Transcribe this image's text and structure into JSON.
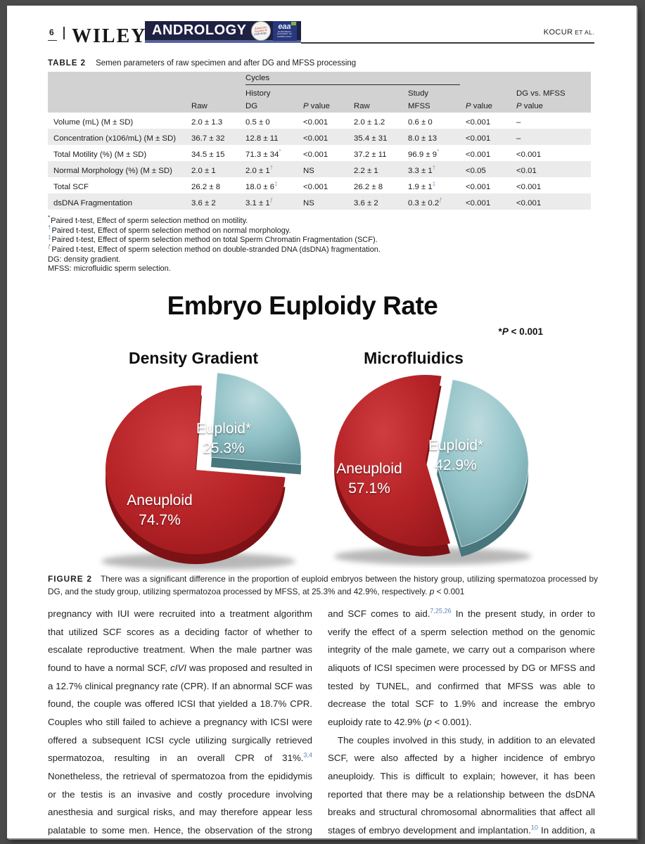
{
  "header": {
    "page_number": "6",
    "publisher": "WILEY",
    "journal": "ANDROLOGY",
    "asa_logo": [
      "American",
      "Society of",
      "Andrology"
    ],
    "eaa_logo": "eaa",
    "eaa_logo_sub": "EUROPEAN ACADEMY OF ANDROLOGY",
    "running_head": "KOCUR",
    "running_head_suffix": " ET AL."
  },
  "table": {
    "label": "TABLE 2",
    "caption": "Semen parameters of raw specimen and after DG and MFSS processing",
    "group_header": "Cycles",
    "history_header": "History",
    "study_header": "Study",
    "comparison_header": "DG vs. MFSS",
    "columns": [
      [
        {
          "text": "Raw"
        }
      ],
      [
        {
          "text": "DG"
        }
      ],
      [
        {
          "text": "P",
          "italic": true
        },
        {
          "text": " value"
        }
      ],
      [
        {
          "text": "Raw"
        }
      ],
      [
        {
          "text": "MFSS"
        }
      ],
      [
        {
          "text": "P",
          "italic": true
        },
        {
          "text": " value"
        }
      ],
      [
        {
          "text": "P",
          "italic": true
        },
        {
          "text": " value"
        }
      ]
    ],
    "rows": [
      {
        "label": "Volume (mL) (M ± SD)",
        "cells": [
          {
            "v": "2.0 ± 1.3"
          },
          {
            "v": "0.5 ± 0"
          },
          {
            "v": "<0.001"
          },
          {
            "v": "2.0 ± 1.2"
          },
          {
            "v": "0.6 ± 0"
          },
          {
            "v": "<0.001"
          },
          {
            "v": "–"
          }
        ]
      },
      {
        "label": "Concentration (x106/mL) (M ± SD)",
        "cells": [
          {
            "v": "36.7 ± 32"
          },
          {
            "v": "12.8 ± 11"
          },
          {
            "v": "<0.001"
          },
          {
            "v": "35.4 ± 31"
          },
          {
            "v": "8.0 ± 13"
          },
          {
            "v": "<0.001"
          },
          {
            "v": "–"
          }
        ]
      },
      {
        "label": "Total Motility (%) (M ± SD)",
        "cells": [
          {
            "v": "34.5 ± 15"
          },
          {
            "v": "71.3 ± 34",
            "sup": "*"
          },
          {
            "v": "<0.001"
          },
          {
            "v": "37.2 ± 11"
          },
          {
            "v": "96.9 ± 9",
            "sup": "*"
          },
          {
            "v": "<0.001"
          },
          {
            "v": "<0.001"
          }
        ]
      },
      {
        "label": "Normal Morphology (%) (M ± SD)",
        "cells": [
          {
            "v": "2.0 ± 1"
          },
          {
            "v": "2.0 ± 1",
            "sup": "†"
          },
          {
            "v": "NS"
          },
          {
            "v": "2.2 ± 1"
          },
          {
            "v": "3.3 ± 1",
            "sup": "†"
          },
          {
            "v": "<0.05"
          },
          {
            "v": "<0.01"
          }
        ]
      },
      {
        "label": "Total SCF",
        "cells": [
          {
            "v": "26.2 ± 8"
          },
          {
            "v": "18.0 ± 6",
            "sup": "‡"
          },
          {
            "v": "<0.001"
          },
          {
            "v": "26.2 ± 8"
          },
          {
            "v": "1.9 ± 1",
            "sup": "‡"
          },
          {
            "v": "<0.001"
          },
          {
            "v": "<0.001"
          }
        ]
      },
      {
        "label": "dsDNA Fragmentation",
        "cells": [
          {
            "v": "3.6 ± 2"
          },
          {
            "v": "3.1 ± 1",
            "sup": "ƒ"
          },
          {
            "v": "NS"
          },
          {
            "v": "3.6 ± 2"
          },
          {
            "v": "0.3 ± 0.2",
            "sup": "ƒ"
          },
          {
            "v": "<0.001"
          },
          {
            "v": "<0.001"
          }
        ]
      }
    ]
  },
  "footnotes": [
    {
      "sup": "*",
      "supColor": "#333333",
      "text": "Paired t-test, Effect of sperm selection method on motility."
    },
    {
      "sup": "†",
      "supColor": "#6d8bab",
      "text": "Paired t-test, Effect of sperm selection method on normal morphology."
    },
    {
      "sup": "‡",
      "supColor": "#6d8bab",
      "text": "Paired t-test, Effect of sperm selection method on total Sperm Chromatin Fragmentation (SCF)."
    },
    {
      "sup": "ƒ",
      "supColor": "#6d8bab",
      "text": "Paired t-test, Effect of sperm selection method on double-stranded DNA (dsDNA) fragmentation."
    },
    {
      "sup": "",
      "supColor": "",
      "text": "DG: density gradient."
    },
    {
      "sup": "",
      "supColor": "",
      "text": "MFSS: microfluidic sperm selection."
    }
  ],
  "figure": {
    "title": "Embryo Euploidy Rate",
    "note": [
      {
        "text": "*"
      },
      {
        "text": "P",
        "italic": true
      },
      {
        "text": " < 0.001"
      }
    ],
    "caption_label": "FIGURE 2",
    "caption": [
      {
        "text": "There was a significant difference in the proportion of euploid embryos between the history group, utilizing spermatozoa processed by DG, and the study group, utilizing spermatozoa processed by MFSS, at 25.3% and 42.9%, respectively. "
      },
      {
        "text": "p",
        "italic": true
      },
      {
        "text": " < 0.001"
      }
    ]
  },
  "chart_data": [
    {
      "type": "pie",
      "title": "Density Gradient",
      "labels": [
        "Aneuploid",
        "Euploid*"
      ],
      "values": [
        74.7,
        25.3
      ],
      "value_labels": [
        "74.7%",
        "25.3%"
      ],
      "colors": [
        "#b72428",
        "#8dbfc4"
      ],
      "exploded_slice": "Euploid*",
      "style": "3d",
      "annotation": "*P < 0.001"
    },
    {
      "type": "pie",
      "title": "Microfluidics",
      "labels": [
        "Aneuploid",
        "Euploid*"
      ],
      "values": [
        57.1,
        42.9
      ],
      "value_labels": [
        "57.1%",
        "42.9%"
      ],
      "colors": [
        "#b72428",
        "#8dbfc4"
      ],
      "exploded_slice": "Euploid*",
      "style": "3d",
      "annotation": "*P < 0.001"
    }
  ],
  "body": {
    "left": [
      {
        "text": "pregnancy with IUI were recruited into a treatment algorithm that utilized SCF scores as a deciding factor of whether to escalate reproductive treatment. When the male partner was found to have a normal SCF, "
      },
      {
        "text": "cIVI",
        "italic": true
      },
      {
        "text": " was proposed and resulted in a 12.7% clinical pregnancy rate (CPR). If an abnormal SCF was found, the couple was offered ICSI that yielded a 18.7% CPR. Couples who still failed to achieve a pregnancy with ICSI were offered a subsequent ICSI cycle utilizing surgically retrieved spermatozoa, resulting in an overall CPR of 31%."
      },
      {
        "text": "3,4",
        "sup": true,
        "color": "#5b87b5"
      },
      {
        "text": " Nonetheless, the retrieval of spermatozoa from the epididymis or the testis is an invasive and costly procedure involving anesthesia and surgical risks, and may therefore appear less palatable to some men. Hence, the observation of the strong inverse relationship between motility"
      }
    ],
    "right_p1": [
      {
        "text": "and SCF comes to aid."
      },
      {
        "text": "7,25,26",
        "sup": true,
        "color": "#5b87b5"
      },
      {
        "text": " In the present study, in order to verify the effect of a sperm selection method on the genomic integrity of the male gamete, we carry out a comparison where aliquots of ICSI specimen were processed by DG or MFSS and tested by TUNEL, and confirmed that MFSS was able to decrease the total SCF to 1.9% and increase the embryo euploidy rate to 42.9% ("
      },
      {
        "text": "p",
        "italic": true
      },
      {
        "text": " < 0.001)."
      }
    ],
    "right_p2": [
      {
        "text": "The couples involved in this study, in addition to an elevated SCF, were also affected by a higher incidence of embryo aneuploidy. This is difficult to explain; however, it has been reported that there may be a relationship between the dsDNA breaks and structural chromosomal abnormalities that affect all stages of embryo development and implantation."
      },
      {
        "text": "10",
        "sup": true,
        "color": "#5b87b5"
      },
      {
        "text": " In addition, a more recent study confirms the link"
      }
    ]
  },
  "colors": {
    "pie_red": "#b72428",
    "pie_red_side": "#7c1215",
    "pie_teal": "#8dbfc4",
    "pie_teal_side": "#47767c",
    "banner_navy": "#1e2142",
    "table_header_gray": "#d2d2d2",
    "table_row_alt": "#ebebeb",
    "reference_blue": "#5b87b5",
    "table_sup_blue": "#7ba1c9",
    "frame_gray": "#4a4a4a"
  }
}
